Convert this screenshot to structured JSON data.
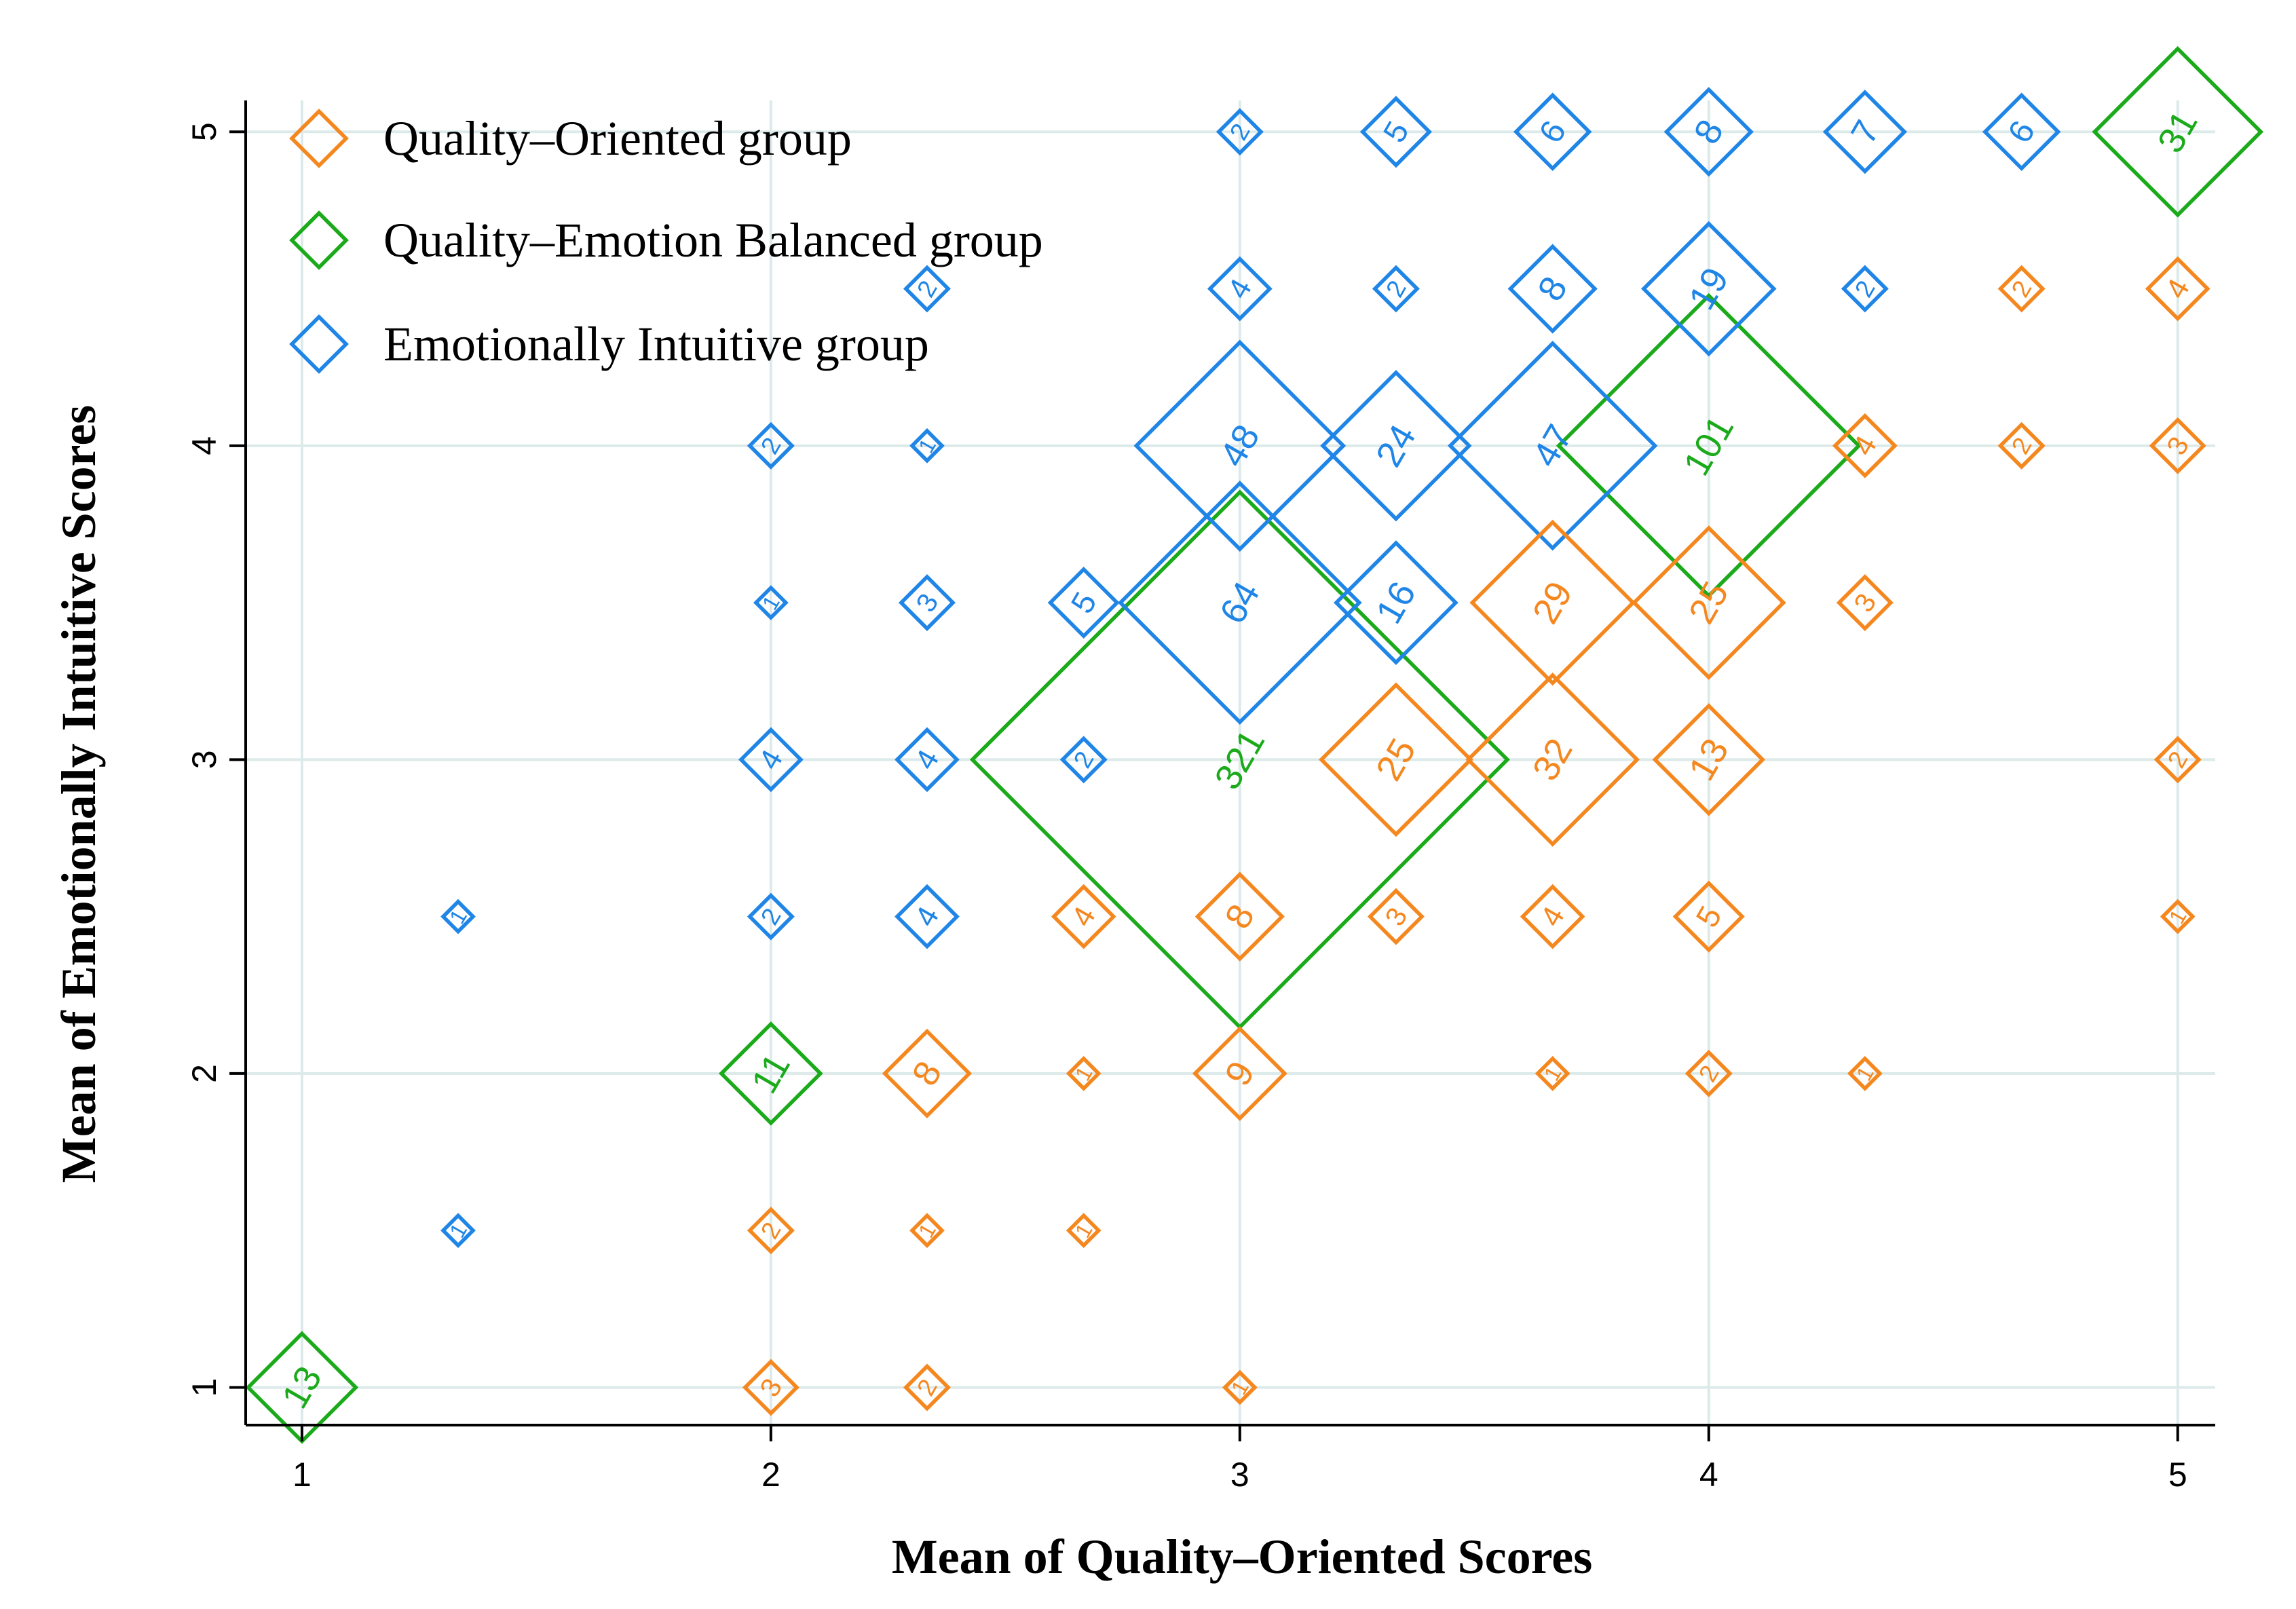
{
  "chart_data": {
    "type": "scatter",
    "marker": "diamond-sized-by-count",
    "xlabel": "Mean of Quality–Oriented Scores",
    "ylabel": "Mean of Emotionally Intuitive Scores",
    "xlim": [
      0.88,
      5.08
    ],
    "ylim": [
      0.88,
      5.1
    ],
    "xticks": [
      1,
      2,
      3,
      4,
      5
    ],
    "yticks": [
      1,
      2,
      3,
      4,
      5
    ],
    "grid": true,
    "legend_position": "top-left",
    "series": [
      {
        "name": "Quality–Oriented group",
        "color": "#f5871f",
        "points": [
          {
            "x": 5,
            "y": 4.5,
            "count": 4
          },
          {
            "x": 4.667,
            "y": 4.5,
            "count": 2
          },
          {
            "x": 4.333,
            "y": 4,
            "count": 4
          },
          {
            "x": 4.667,
            "y": 4,
            "count": 2
          },
          {
            "x": 5,
            "y": 4,
            "count": 3
          },
          {
            "x": 3.667,
            "y": 3.5,
            "count": 29
          },
          {
            "x": 4,
            "y": 3.5,
            "count": 25
          },
          {
            "x": 4.333,
            "y": 3.5,
            "count": 3
          },
          {
            "x": 3.333,
            "y": 3,
            "count": 25
          },
          {
            "x": 3.667,
            "y": 3,
            "count": 32
          },
          {
            "x": 4,
            "y": 3,
            "count": 13
          },
          {
            "x": 5,
            "y": 3,
            "count": 2
          },
          {
            "x": 2.667,
            "y": 2.5,
            "count": 4
          },
          {
            "x": 3,
            "y": 2.5,
            "count": 8
          },
          {
            "x": 3.333,
            "y": 2.5,
            "count": 3
          },
          {
            "x": 3.667,
            "y": 2.5,
            "count": 4
          },
          {
            "x": 4,
            "y": 2.5,
            "count": 5
          },
          {
            "x": 5,
            "y": 2.5,
            "count": 1
          },
          {
            "x": 2.333,
            "y": 2,
            "count": 8
          },
          {
            "x": 2.667,
            "y": 2,
            "count": 1
          },
          {
            "x": 3,
            "y": 2,
            "count": 9
          },
          {
            "x": 3.667,
            "y": 2,
            "count": 1
          },
          {
            "x": 4,
            "y": 2,
            "count": 2
          },
          {
            "x": 4.333,
            "y": 2,
            "count": 1
          },
          {
            "x": 2,
            "y": 1.5,
            "count": 2
          },
          {
            "x": 2.333,
            "y": 1.5,
            "count": 1
          },
          {
            "x": 2.667,
            "y": 1.5,
            "count": 1
          },
          {
            "x": 2,
            "y": 1,
            "count": 3
          },
          {
            "x": 2.333,
            "y": 1,
            "count": 2
          },
          {
            "x": 3,
            "y": 1,
            "count": 1
          }
        ]
      },
      {
        "name": "Quality–Emotion Balanced group",
        "color": "#1aaa1a",
        "points": [
          {
            "x": 5,
            "y": 5,
            "count": 31
          },
          {
            "x": 4,
            "y": 4,
            "count": 101
          },
          {
            "x": 3,
            "y": 3,
            "count": 321
          },
          {
            "x": 2,
            "y": 2,
            "count": 11
          },
          {
            "x": 1,
            "y": 1,
            "count": 13
          }
        ]
      },
      {
        "name": "Emotionally Intuitive group",
        "color": "#1f85e6",
        "points": [
          {
            "x": 3,
            "y": 5,
            "count": 2
          },
          {
            "x": 3.333,
            "y": 5,
            "count": 5
          },
          {
            "x": 3.667,
            "y": 5,
            "count": 6
          },
          {
            "x": 4,
            "y": 5,
            "count": 8
          },
          {
            "x": 4.333,
            "y": 5,
            "count": 7
          },
          {
            "x": 4.667,
            "y": 5,
            "count": 6
          },
          {
            "x": 2.333,
            "y": 4.5,
            "count": 2
          },
          {
            "x": 3,
            "y": 4.5,
            "count": 4
          },
          {
            "x": 3.333,
            "y": 4.5,
            "count": 2
          },
          {
            "x": 3.667,
            "y": 4.5,
            "count": 8
          },
          {
            "x": 4,
            "y": 4.5,
            "count": 19
          },
          {
            "x": 4.333,
            "y": 4.5,
            "count": 2
          },
          {
            "x": 2,
            "y": 4,
            "count": 2
          },
          {
            "x": 2.333,
            "y": 4,
            "count": 1
          },
          {
            "x": 3,
            "y": 4,
            "count": 48
          },
          {
            "x": 3.333,
            "y": 4,
            "count": 24
          },
          {
            "x": 3.667,
            "y": 4,
            "count": 47
          },
          {
            "x": 2,
            "y": 3.5,
            "count": 1
          },
          {
            "x": 2.333,
            "y": 3.5,
            "count": 3
          },
          {
            "x": 2.667,
            "y": 3.5,
            "count": 5
          },
          {
            "x": 3,
            "y": 3.5,
            "count": 64
          },
          {
            "x": 3.333,
            "y": 3.5,
            "count": 16
          },
          {
            "x": 2,
            "y": 3,
            "count": 4
          },
          {
            "x": 2.333,
            "y": 3,
            "count": 4
          },
          {
            "x": 2.667,
            "y": 3,
            "count": 2
          },
          {
            "x": 1.333,
            "y": 2.5,
            "count": 1
          },
          {
            "x": 2,
            "y": 2.5,
            "count": 2
          },
          {
            "x": 2.333,
            "y": 2.5,
            "count": 4
          },
          {
            "x": 1.333,
            "y": 1.5,
            "count": 1
          }
        ]
      }
    ]
  }
}
